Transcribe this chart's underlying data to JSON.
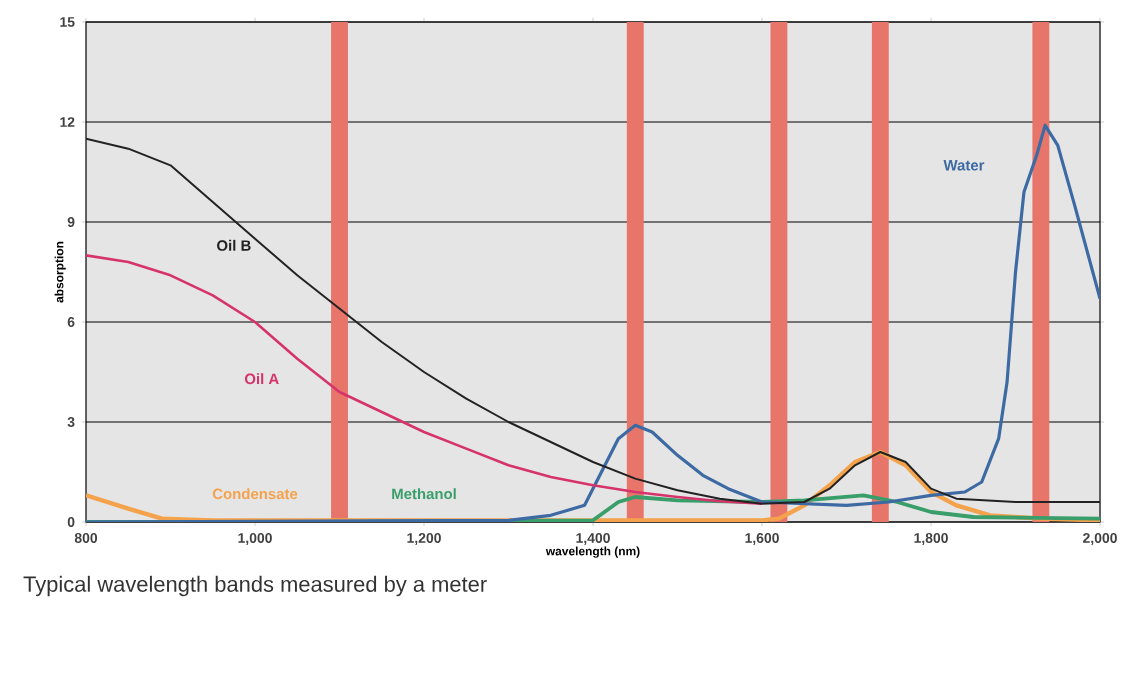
{
  "chart_data": {
    "type": "line",
    "xlabel": "wavelength (nm)",
    "ylabel": "absorption",
    "xlim": [
      800,
      2000
    ],
    "ylim": [
      0,
      15
    ],
    "xticks": [
      800,
      {
        "value": 1000,
        "label": "1,000"
      },
      {
        "value": 1200,
        "label": "1,200"
      },
      {
        "value": 1400,
        "label": "1,400"
      },
      {
        "value": 1600,
        "label": "1,600"
      },
      {
        "value": 1800,
        "label": "1,800"
      },
      {
        "value": 2000,
        "label": "2,000"
      }
    ],
    "yticks": [
      0,
      3,
      6,
      9,
      12,
      15
    ],
    "grid": "y",
    "legend": false,
    "marker": "none",
    "line_style": "solid",
    "bands": [
      {
        "axis": "x",
        "from": 1090,
        "to": 1110,
        "color": "#e8756a"
      },
      {
        "axis": "x",
        "from": 1440,
        "to": 1460,
        "color": "#e8756a"
      },
      {
        "axis": "x",
        "from": 1610,
        "to": 1630,
        "color": "#e8756a"
      },
      {
        "axis": "x",
        "from": 1730,
        "to": 1750,
        "color": "#e8756a"
      },
      {
        "axis": "x",
        "from": 1920,
        "to": 1940,
        "color": "#e8756a"
      }
    ],
    "series": [
      {
        "name": "Condensate",
        "color": "#f4a24b",
        "x": [
          800,
          850,
          890,
          950,
          1100,
          1300,
          1500,
          1600,
          1620,
          1650,
          1680,
          1710,
          1740,
          1770,
          1800,
          1830,
          1870,
          1930,
          2000
        ],
        "values": [
          0.8,
          0.4,
          0.1,
          0.05,
          0.05,
          0.05,
          0.05,
          0.05,
          0.1,
          0.5,
          1.1,
          1.8,
          2.1,
          1.7,
          0.9,
          0.5,
          0.2,
          0.1,
          0.05
        ]
      },
      {
        "name": "Methanol",
        "color": "#3a9e6a",
        "x": [
          800,
          1100,
          1400,
          1430,
          1450,
          1500,
          1600,
          1650,
          1720,
          1760,
          1800,
          1850,
          2000
        ],
        "values": [
          0,
          0,
          0.05,
          0.6,
          0.75,
          0.65,
          0.6,
          0.65,
          0.8,
          0.6,
          0.3,
          0.15,
          0.1
        ]
      },
      {
        "name": "Water",
        "color": "#3d6aa3",
        "x": [
          800,
          1300,
          1350,
          1390,
          1410,
          1430,
          1450,
          1470,
          1500,
          1530,
          1560,
          1600,
          1650,
          1700,
          1750,
          1800,
          1840,
          1860,
          1880,
          1890,
          1900,
          1910,
          1925,
          1935,
          1950,
          1970,
          2000
        ],
        "values": [
          0,
          0.05,
          0.2,
          0.5,
          1.5,
          2.5,
          2.9,
          2.7,
          2.0,
          1.4,
          1.0,
          0.6,
          0.55,
          0.5,
          0.6,
          0.8,
          0.9,
          1.2,
          2.5,
          4.2,
          7.5,
          9.9,
          11.0,
          11.9,
          11.3,
          9.5,
          6.7
        ]
      },
      {
        "name": "Oil A",
        "color": "#d6336b",
        "x": [
          800,
          850,
          900,
          950,
          1000,
          1050,
          1100,
          1150,
          1200,
          1250,
          1300,
          1350,
          1400,
          1450,
          1500,
          1550,
          1600
        ],
        "values": [
          8.0,
          7.8,
          7.4,
          6.8,
          6.0,
          4.9,
          3.9,
          3.3,
          2.7,
          2.2,
          1.7,
          1.35,
          1.1,
          0.9,
          0.75,
          0.62,
          0.55
        ]
      },
      {
        "name": "Oil B",
        "color": "#222222",
        "x": [
          800,
          850,
          900,
          950,
          1000,
          1050,
          1100,
          1150,
          1200,
          1250,
          1300,
          1350,
          1400,
          1450,
          1500,
          1550,
          1600,
          1650,
          1680,
          1710,
          1740,
          1770,
          1800,
          1830,
          1900,
          2000
        ],
        "values": [
          11.5,
          11.2,
          10.7,
          9.6,
          8.5,
          7.4,
          6.4,
          5.4,
          4.5,
          3.7,
          3.0,
          2.4,
          1.8,
          1.3,
          0.95,
          0.7,
          0.55,
          0.6,
          1.0,
          1.7,
          2.1,
          1.8,
          1.0,
          0.7,
          0.6,
          0.6
        ]
      }
    ],
    "annotations": [
      "Typical wavelength bands measured by a meter"
    ]
  }
}
